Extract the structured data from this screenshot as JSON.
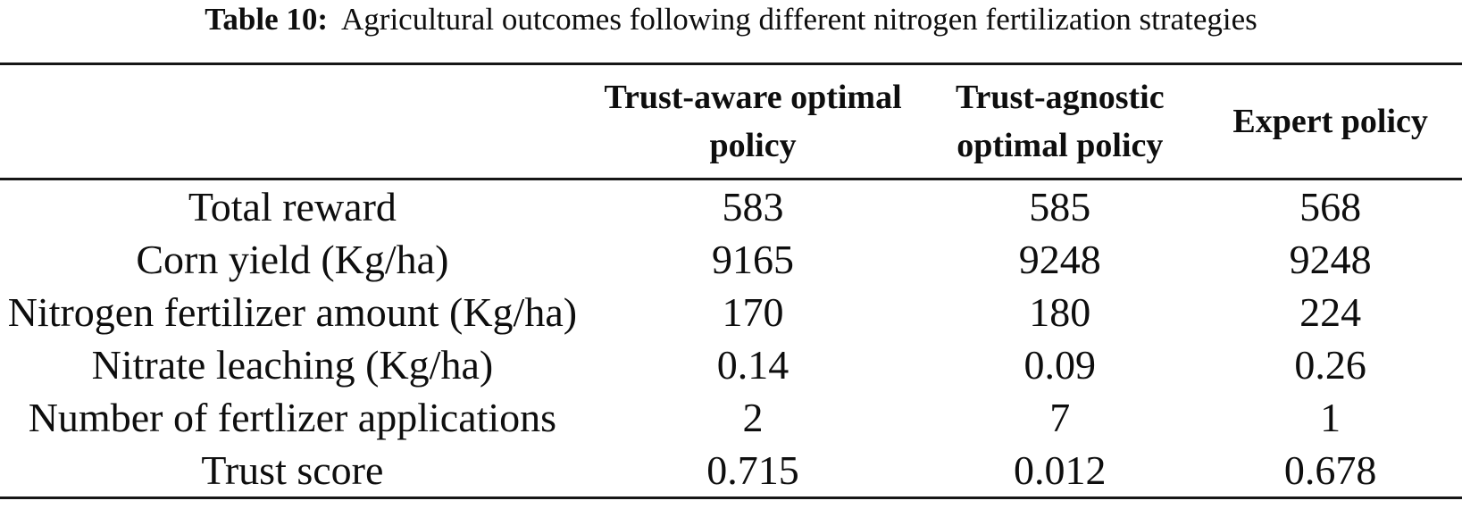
{
  "caption": {
    "label": "Table 10:",
    "text": "Agricultural outcomes following different nitrogen fertilization strategies"
  },
  "table": {
    "header": {
      "col1": "Trust-aware optimal policy",
      "col2": "Trust-agnostic optimal policy",
      "col3": "Expert policy"
    },
    "rows": [
      {
        "label": "Total reward",
        "values": [
          "583",
          "585",
          "568"
        ]
      },
      {
        "label": "Corn yield (Kg/ha)",
        "values": [
          "9165",
          "9248",
          "9248"
        ]
      },
      {
        "label": "Nitrogen fertilizer amount (Kg/ha)",
        "values": [
          "170",
          "180",
          "224"
        ]
      },
      {
        "label": "Nitrate leaching (Kg/ha)",
        "values": [
          "0.14",
          "0.09",
          "0.26"
        ]
      },
      {
        "label": "Number of fertlizer applications",
        "values": [
          "2",
          "7",
          "1"
        ]
      },
      {
        "label": "Trust score",
        "values": [
          "0.715",
          "0.012",
          "0.678"
        ]
      }
    ]
  },
  "colors": {
    "text": "#0e0e0e",
    "rule": "#161616",
    "background": "#ffffff"
  }
}
